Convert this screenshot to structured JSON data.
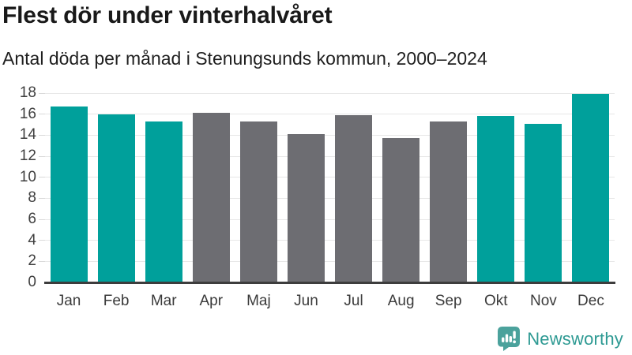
{
  "chart_data": {
    "type": "bar",
    "title": "Flest dör under vinterhalvåret",
    "subtitle": "Antal döda per månad i Stenungsunds kommun, 2000–2024",
    "categories": [
      "Jan",
      "Feb",
      "Mar",
      "Apr",
      "Maj",
      "Jun",
      "Jul",
      "Aug",
      "Sep",
      "Okt",
      "Nov",
      "Dec"
    ],
    "values": [
      16.7,
      16.0,
      15.3,
      16.1,
      15.3,
      14.1,
      15.9,
      13.7,
      15.3,
      15.8,
      15.1,
      17.9
    ],
    "bar_colors": [
      "#00A09B",
      "#00A09B",
      "#00A09B",
      "#6D6D72",
      "#6D6D72",
      "#6D6D72",
      "#6D6D72",
      "#6D6D72",
      "#6D6D72",
      "#00A09B",
      "#00A09B",
      "#00A09B"
    ],
    "highlight_color": "#00A09B",
    "base_color": "#6D6D72",
    "xlabel": "",
    "ylabel": "",
    "ylim": [
      0,
      18
    ],
    "yticks": [
      0,
      2,
      4,
      6,
      8,
      10,
      12,
      14,
      16,
      18
    ],
    "grid": true,
    "legend": "none",
    "axis_color": "#3d3d3d",
    "gridline_color": "#e7e7e7"
  },
  "footer": {
    "brand": "Newsworthy",
    "logo_icon": "newsworthy-speech-bubble-bar-chart-icon",
    "logo_color": "#4BA29C",
    "brand_color": "#2E9A93"
  }
}
